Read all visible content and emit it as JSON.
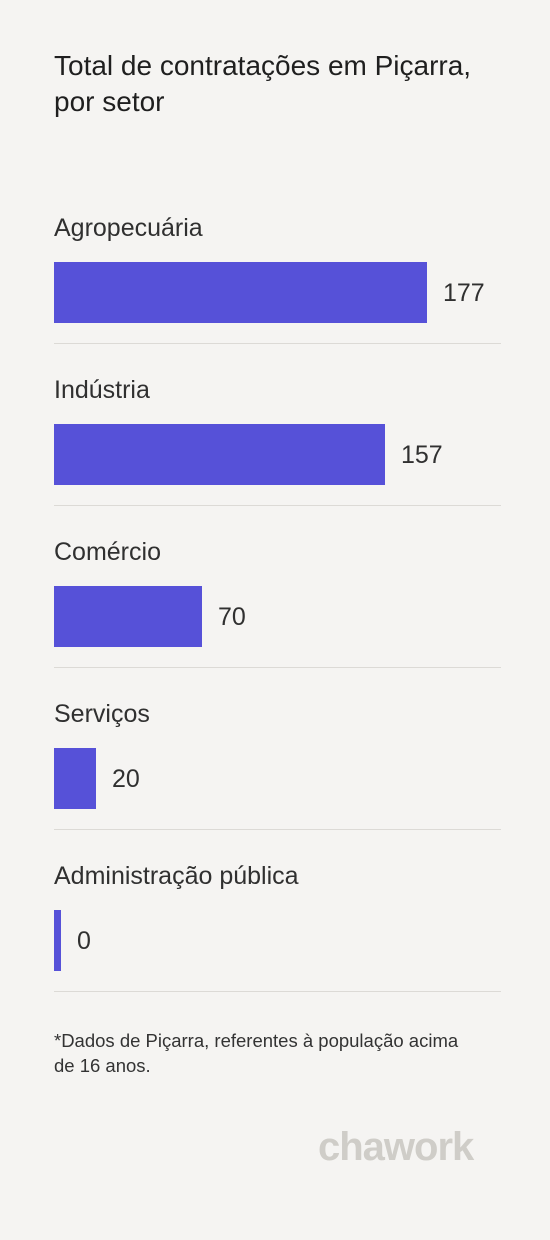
{
  "title": "Total de contratações em Piçarra, por setor",
  "chart_data": {
    "type": "bar",
    "orientation": "horizontal",
    "title": "Total de contratações em Piçarra, por setor",
    "categories": [
      "Agropecuária",
      "Indústria",
      "Comércio",
      "Serviços",
      "Administração pública"
    ],
    "values": [
      177,
      157,
      70,
      20,
      0
    ],
    "value_labels": [
      "177",
      "157",
      "70",
      "20",
      "0"
    ],
    "xlabel": "",
    "ylabel": "",
    "grid": false,
    "legend": "none",
    "bar_color": "#5651d8"
  },
  "footnote": "*Dados de Piçarra, referentes à população acima de 16 anos.",
  "logo": {
    "text": "chawork",
    "color": "#cfcdc8"
  },
  "colors": {
    "background": "#f5f4f2",
    "bar": "#5651d8",
    "divider": "#dcdad6",
    "text": "#2b2b2b"
  }
}
